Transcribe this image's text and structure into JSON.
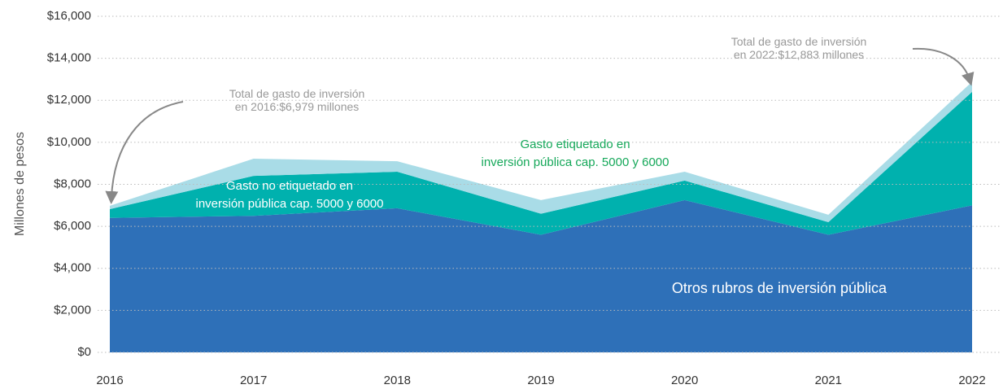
{
  "chart_data": {
    "type": "stacked_area",
    "y_label": "Millones de pesos",
    "categories": [
      "2016",
      "2017",
      "2018",
      "2019",
      "2020",
      "2021",
      "2022"
    ],
    "series": [
      {
        "name": "Otros rubros de inversión pública",
        "color": "#2e70b8",
        "values": [
          6400,
          6500,
          6860,
          5600,
          7250,
          5600,
          7000
        ]
      },
      {
        "name": "Gasto no etiquetado en\ninversión pública cap. 5000 y 6000",
        "color": "#00b1ae",
        "values": [
          420,
          1900,
          1740,
          1000,
          930,
          600,
          5400
        ]
      },
      {
        "name": "Gasto etiquetado en\ninversión pública cap. 5000 y 6000",
        "color": "#a9dce7",
        "values": [
          159,
          820,
          500,
          650,
          420,
          350,
          483
        ]
      }
    ],
    "ylim": [
      0,
      16000
    ],
    "yticks": [
      {
        "value": 0,
        "label": "$0"
      },
      {
        "value": 2000,
        "label": "$2,000"
      },
      {
        "value": 4000,
        "label": "$4,000"
      },
      {
        "value": 6000,
        "label": "$6,000"
      },
      {
        "value": 8000,
        "label": "$8,000"
      },
      {
        "value": 10000,
        "label": "$10,000"
      },
      {
        "value": 12000,
        "label": "$12,000"
      },
      {
        "value": 14000,
        "label": "$14,000"
      },
      {
        "value": 16000,
        "label": "$16,000"
      }
    ],
    "grid": true,
    "annotations": [
      "Total de gasto de inversión\nen 2016:$6,979 millones",
      "Total de gasto de inversión\nen 2022:$12,883 millones"
    ]
  }
}
